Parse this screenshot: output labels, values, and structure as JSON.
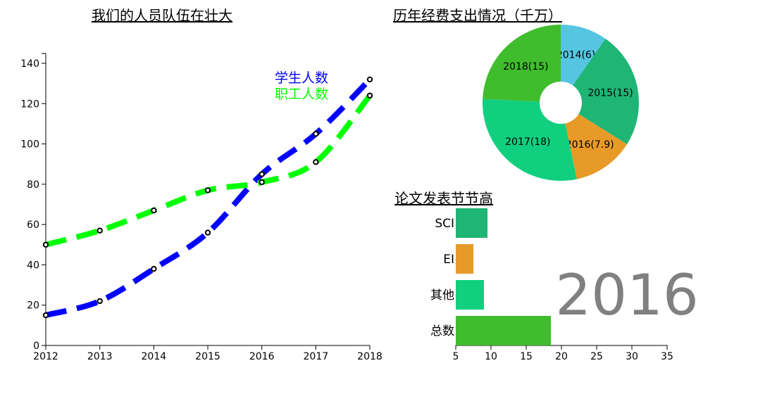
{
  "chart_data": [
    {
      "type": "line",
      "title": "我们的人员队伍在壮大",
      "x": [
        "2012",
        "2013",
        "2014",
        "2015",
        "2016",
        "2017",
        "2018"
      ],
      "ylim": [
        0,
        140
      ],
      "yticks": [
        0,
        20,
        40,
        60,
        80,
        100,
        120,
        140
      ],
      "legend_position": "top-right",
      "series": [
        {
          "name": "学生人数",
          "color": "#0000ff",
          "values": [
            15,
            22,
            38,
            56,
            85,
            105,
            132
          ]
        },
        {
          "name": "职工人数",
          "color": "#00ff00",
          "values": [
            50,
            57,
            67,
            77,
            81,
            91,
            124
          ]
        }
      ]
    },
    {
      "type": "pie",
      "title": "历年经费支出情况（千万）",
      "slices": [
        {
          "label": "2014(6)",
          "value": 6,
          "color": "#56c5e2"
        },
        {
          "label": "2015(15)",
          "value": 15,
          "color": "#1fb574"
        },
        {
          "label": "2016(7.9)",
          "value": 7.9,
          "color": "#e89a28"
        },
        {
          "label": "2017(18)",
          "value": 18,
          "color": "#10cf7f"
        },
        {
          "label": "2018(15)",
          "value": 15,
          "color": "#3fbd2c"
        }
      ]
    },
    {
      "type": "bar",
      "orientation": "horizontal",
      "title": "论文发表节节高",
      "categories": [
        "SCI",
        "EI",
        "其他",
        "总数"
      ],
      "values": [
        9.5,
        7.5,
        9,
        18.5
      ],
      "colors": [
        "#1fb574",
        "#e89a28",
        "#10cf7f",
        "#3fbd2c"
      ],
      "xlim": [
        5,
        35
      ],
      "xticks": [
        5,
        10,
        15,
        20,
        25,
        30,
        35
      ]
    }
  ],
  "year_label": "2016"
}
